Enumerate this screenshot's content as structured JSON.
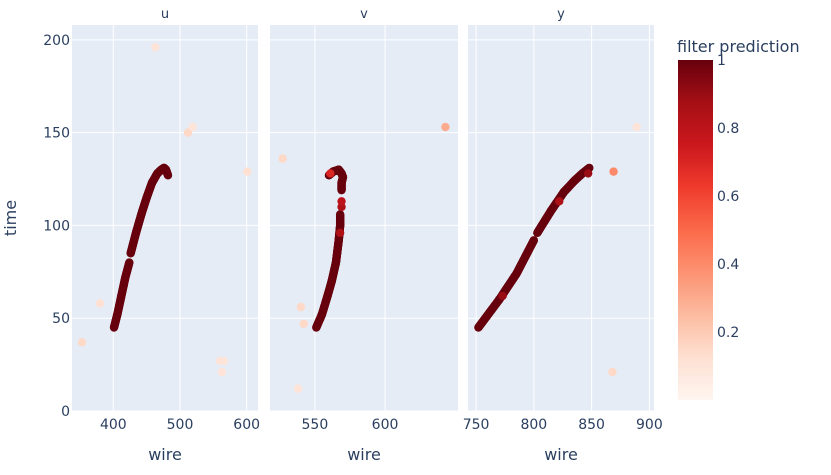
{
  "chart_data": {
    "type": "scatter",
    "ylabel": "time",
    "y_range": [
      0,
      208
    ],
    "y_ticks": [
      0,
      50,
      100,
      150,
      200
    ],
    "grid": true,
    "colorbar": {
      "title": "filter prediction",
      "range": [
        0,
        1
      ],
      "ticks": [
        0.2,
        0.4,
        0.6,
        0.8,
        1
      ],
      "tick_labels": [
        "0.2",
        "0.4",
        "0.6",
        "0.8",
        "1"
      ],
      "colors": [
        "#fff5f0",
        "#fee0d2",
        "#fcbba1",
        "#fc9272",
        "#fb6a4a",
        "#ef3b2c",
        "#cb181d",
        "#a50f15",
        "#67000d"
      ]
    },
    "panels": [
      {
        "title": "u",
        "xlabel": "wire",
        "x_range": [
          338,
          617
        ],
        "x_ticks": [
          400,
          500,
          600
        ],
        "tracks": [
          {
            "points": [
              [
                401,
                45
              ],
              [
                406,
                52
              ],
              [
                412,
                62
              ],
              [
                418,
                72
              ],
              [
                424,
                80
              ]
            ],
            "step": 0.5,
            "value": 1.0
          },
          {
            "points": [
              [
                426,
                85
              ],
              [
                434,
                96
              ],
              [
                442,
                106
              ],
              [
                450,
                115
              ],
              [
                458,
                123
              ],
              [
                466,
                128
              ],
              [
                472,
                130
              ],
              [
                476,
                131
              ],
              [
                479,
                130
              ],
              [
                482,
                127
              ]
            ],
            "step": 0.5,
            "value": 1.0
          }
        ],
        "points": [
          [
            353,
            37,
            0.15
          ],
          [
            380,
            58,
            0.12
          ],
          [
            463,
            196,
            0.1
          ],
          [
            512,
            150,
            0.15
          ],
          [
            519,
            153,
            0.1
          ],
          [
            560,
            27,
            0.1
          ],
          [
            566,
            27,
            0.1
          ],
          [
            563,
            21,
            0.1
          ],
          [
            601,
            129,
            0.12
          ]
        ]
      },
      {
        "title": "v",
        "xlabel": "wire",
        "x_range": [
          518,
          652
        ],
        "x_ticks": [
          550,
          600
        ],
        "tracks": [
          {
            "points": [
              [
                551,
                45
              ],
              [
                555,
                52
              ],
              [
                559,
                62
              ],
              [
                562,
                70
              ],
              [
                565,
                80
              ],
              [
                566,
                86
              ],
              [
                567,
                92
              ],
              [
                568,
                100
              ],
              [
                568,
                106
              ]
            ],
            "step": 0.4,
            "value": 1.0
          },
          {
            "points": [
              [
                569,
                119
              ],
              [
                569,
                123
              ],
              [
                570,
                126
              ],
              [
                569,
                128
              ],
              [
                567,
                130
              ],
              [
                563,
                129
              ],
              [
                560,
                127
              ]
            ],
            "step": 0.3,
            "value": 1.0
          }
        ],
        "points": [
          [
            568,
            96,
            0.85
          ],
          [
            569,
            110,
            0.85
          ],
          [
            569,
            113,
            0.8
          ],
          [
            561,
            128,
            0.7
          ],
          [
            527,
            136,
            0.15
          ],
          [
            540,
            56,
            0.15
          ],
          [
            542,
            47,
            0.15
          ],
          [
            538,
            12,
            0.1
          ],
          [
            643,
            153,
            0.3
          ]
        ]
      },
      {
        "title": "y",
        "xlabel": "wire",
        "x_range": [
          743,
          904
        ],
        "x_ticks": [
          750,
          800,
          850,
          900
        ],
        "tracks": [
          {
            "points": [
              [
                752,
                45
              ],
              [
                770,
                60
              ],
              [
                785,
                74
              ],
              [
                800,
                92
              ]
            ],
            "step": 0.5,
            "value": 1.0
          },
          {
            "points": [
              [
                803,
                96
              ],
              [
                815,
                108
              ],
              [
                826,
                118
              ],
              [
                835,
                124
              ],
              [
                842,
                128
              ],
              [
                848,
                131
              ]
            ],
            "step": 0.5,
            "value": 1.0
          }
        ],
        "points": [
          [
            773,
            62,
            0.9
          ],
          [
            822,
            113,
            0.85
          ],
          [
            847,
            128,
            0.9
          ],
          [
            869,
            129,
            0.4
          ],
          [
            868,
            21,
            0.15
          ],
          [
            889,
            153,
            0.1
          ]
        ]
      }
    ]
  }
}
